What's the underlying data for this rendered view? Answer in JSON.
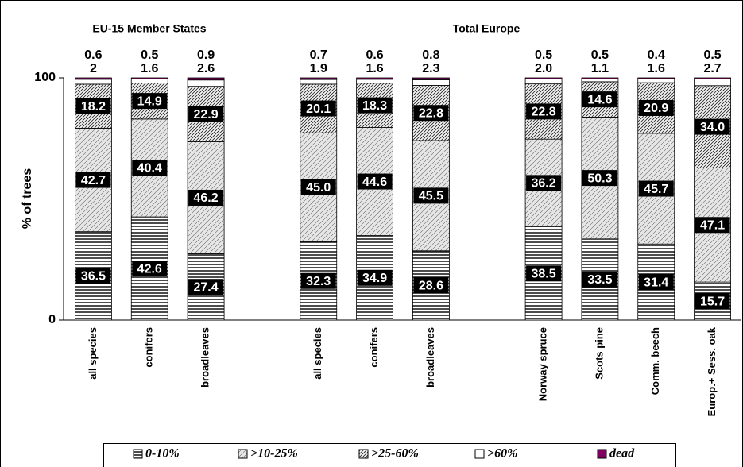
{
  "chart_data": {
    "type": "stacked-bar",
    "y_label": "% of trees",
    "group_labels": [
      "EU-15 Member States",
      "Total Europe"
    ],
    "categories": [
      "all species",
      "conifers",
      "broadleaves",
      null,
      "all species",
      "conifers",
      "broadleaves",
      null,
      "Norway spruce",
      "Scots pine",
      "Comm. beech",
      "Europ.+ Sess. oak"
    ],
    "ylim": [
      0,
      100
    ],
    "yticks": [
      0,
      100
    ],
    "series": [
      {
        "name": "0-10%",
        "color": "#000000",
        "pattern": "horizontal",
        "values": [
          36.5,
          42.6,
          27.4,
          null,
          32.3,
          34.9,
          28.6,
          null,
          38.5,
          33.5,
          31.4,
          15.7
        ],
        "value_labels": [
          "36.5",
          "42.6",
          "27.4",
          null,
          "32.3",
          "34.9",
          "28.6",
          null,
          "38.5",
          "33.5",
          "31.4",
          "15.7"
        ]
      },
      {
        "name": ">10-25%",
        "color": "#000000",
        "pattern": "diagonal-sparse",
        "values": [
          42.7,
          40.4,
          46.2,
          null,
          45.0,
          44.6,
          45.5,
          null,
          36.2,
          50.3,
          45.7,
          47.1
        ],
        "value_labels": [
          "42.7",
          "40.4",
          "46.2",
          null,
          "45.0",
          "44.6",
          "45.5",
          null,
          "36.2",
          "50.3",
          "45.7",
          "47.1"
        ]
      },
      {
        "name": ">25-60%",
        "color": "#000000",
        "pattern": "diagonal-dense",
        "values": [
          18.2,
          14.9,
          22.9,
          null,
          20.1,
          18.3,
          22.8,
          null,
          22.8,
          14.6,
          20.9,
          34.0
        ],
        "value_labels": [
          "18.2",
          "14.9",
          "22.9",
          null,
          "20.1",
          "18.3",
          "22.8",
          null,
          "22.8",
          "14.6",
          "20.9",
          "34.0"
        ]
      },
      {
        "name": ">60%",
        "color": "#ffffff",
        "pattern": "none",
        "values": [
          2,
          1.6,
          2.6,
          null,
          1.9,
          1.6,
          2.3,
          null,
          2.0,
          1.1,
          1.6,
          2.7
        ],
        "value_labels": [
          "2",
          "1.6",
          "2.6",
          null,
          "1.9",
          "1.6",
          "2.3",
          null,
          "2.0",
          "1.1",
          "1.6",
          "2.7"
        ]
      },
      {
        "name": "dead",
        "color": "#800060",
        "pattern": "solid",
        "values": [
          0.6,
          0.5,
          0.9,
          null,
          0.7,
          0.6,
          0.8,
          null,
          0.5,
          0.5,
          0.4,
          0.5
        ],
        "value_labels": [
          "0.6",
          "0.5",
          "0.9",
          null,
          "0.7",
          "0.6",
          "0.8",
          null,
          "0.5",
          "0.5",
          "0.4",
          "0.5"
        ]
      }
    ]
  }
}
